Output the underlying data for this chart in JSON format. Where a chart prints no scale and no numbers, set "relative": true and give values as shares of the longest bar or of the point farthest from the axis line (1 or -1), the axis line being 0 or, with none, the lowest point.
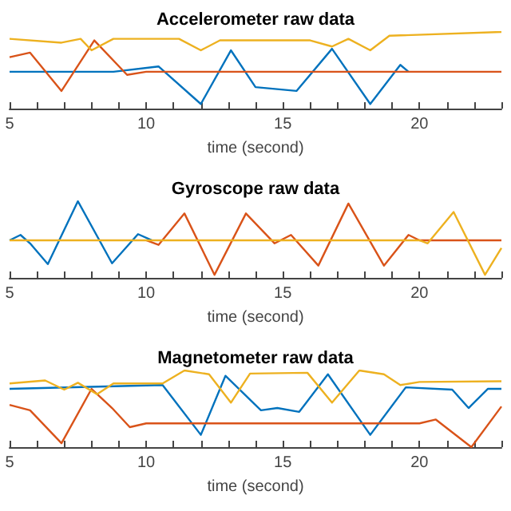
{
  "chart_data": [
    {
      "type": "line",
      "title": "Accelerometer raw data",
      "xlabel": "time (second)",
      "relative": true,
      "marker": "none",
      "xlim": [
        5,
        23
      ],
      "xticks": [
        5,
        {
          "value": 6,
          "label": null
        },
        {
          "value": 7,
          "label": null
        },
        {
          "value": 8,
          "label": null
        },
        {
          "value": 9,
          "label": null
        },
        10,
        {
          "value": 11,
          "label": null
        },
        {
          "value": 12,
          "label": null
        },
        {
          "value": 13,
          "label": null
        },
        {
          "value": 14,
          "label": null
        },
        15,
        {
          "value": 16,
          "label": null
        },
        {
          "value": 17,
          "label": null
        },
        {
          "value": 18,
          "label": null
        },
        {
          "value": 19,
          "label": null
        },
        20,
        {
          "value": 21,
          "label": null
        },
        {
          "value": 22,
          "label": null
        },
        {
          "value": 23,
          "label": null
        }
      ],
      "series": [
        {
          "color": "#0072bd",
          "x": [
            5,
            8.8,
            10.45,
            12,
            13.1,
            14,
            15.5,
            16.8,
            18.2,
            19.3,
            19.6
          ],
          "values": [
            0.48,
            0.48,
            0.55,
            0.06,
            0.76,
            0.28,
            0.23,
            0.78,
            0.06,
            0.57,
            0.48
          ]
        },
        {
          "color": "#d95319",
          "x": [
            5,
            5.75,
            6.9,
            8.1,
            9.3,
            10,
            23
          ],
          "values": [
            0.67,
            0.73,
            0.23,
            0.89,
            0.44,
            0.48,
            0.48
          ]
        },
        {
          "color": "#edb120",
          "x": [
            5,
            6.9,
            7.6,
            8,
            8.8,
            11.2,
            12,
            12.7,
            16,
            16.8,
            17.4,
            18.2,
            18.9,
            23
          ],
          "values": [
            0.91,
            0.86,
            0.91,
            0.76,
            0.91,
            0.91,
            0.76,
            0.89,
            0.89,
            0.81,
            0.91,
            0.76,
            0.95,
            1.0
          ]
        }
      ]
    },
    {
      "type": "line",
      "title": "Gyroscope raw data",
      "xlabel": "time (second)",
      "relative": true,
      "marker": "none",
      "xlim": [
        5,
        23
      ],
      "xticks": [
        5,
        {
          "value": 6,
          "label": null
        },
        {
          "value": 7,
          "label": null
        },
        {
          "value": 8,
          "label": null
        },
        {
          "value": 9,
          "label": null
        },
        10,
        {
          "value": 11,
          "label": null
        },
        {
          "value": 12,
          "label": null
        },
        {
          "value": 13,
          "label": null
        },
        {
          "value": 14,
          "label": null
        },
        15,
        {
          "value": 16,
          "label": null
        },
        {
          "value": 17,
          "label": null
        },
        {
          "value": 18,
          "label": null
        },
        {
          "value": 19,
          "label": null
        },
        20,
        {
          "value": 21,
          "label": null
        },
        {
          "value": 22,
          "label": null
        },
        {
          "value": 23,
          "label": null
        }
      ],
      "series": [
        {
          "color": "#0072bd",
          "x": [
            5,
            5.4,
            5.75,
            6.4,
            7.5,
            8.75,
            9.7,
            10.2
          ],
          "values": [
            0.49,
            0.56,
            0.45,
            0.18,
            1.0,
            0.19,
            0.57,
            0.49
          ]
        },
        {
          "color": "#d95319",
          "x": [
            10,
            10.45,
            11.4,
            12.5,
            13.65,
            14.7,
            15.3,
            16.3,
            17.4,
            18.7,
            19.6,
            20,
            23
          ],
          "values": [
            0.49,
            0.43,
            0.84,
            0.04,
            0.84,
            0.45,
            0.56,
            0.16,
            0.97,
            0.16,
            0.56,
            0.49,
            0.49
          ]
        },
        {
          "color": "#edb120",
          "x": [
            5,
            20,
            20.3,
            21.25,
            22.4,
            23
          ],
          "values": [
            0.49,
            0.49,
            0.45,
            0.86,
            0.04,
            0.39
          ]
        }
      ]
    },
    {
      "type": "line",
      "title": "Magnetometer raw data",
      "xlabel": "time (second)",
      "relative": true,
      "marker": "none",
      "xlim": [
        5,
        23
      ],
      "xticks": [
        5,
        {
          "value": 6,
          "label": null
        },
        {
          "value": 7,
          "label": null
        },
        {
          "value": 8,
          "label": null
        },
        {
          "value": 9,
          "label": null
        },
        10,
        {
          "value": 11,
          "label": null
        },
        {
          "value": 12,
          "label": null
        },
        {
          "value": 13,
          "label": null
        },
        {
          "value": 14,
          "label": null
        },
        15,
        {
          "value": 16,
          "label": null
        },
        {
          "value": 17,
          "label": null
        },
        {
          "value": 18,
          "label": null
        },
        {
          "value": 19,
          "label": null
        },
        20,
        {
          "value": 21,
          "label": null
        },
        {
          "value": 22,
          "label": null
        },
        {
          "value": 23,
          "label": null
        }
      ],
      "series": [
        {
          "color": "#0072bd",
          "x": [
            5,
            10.6,
            12,
            12.9,
            14.2,
            14.8,
            15.6,
            16.65,
            18.2,
            19.5,
            21.2,
            21.8,
            22.5,
            23
          ],
          "values": [
            0.76,
            0.81,
            0.16,
            0.93,
            0.48,
            0.51,
            0.46,
            0.95,
            0.16,
            0.78,
            0.75,
            0.51,
            0.76,
            0.76
          ]
        },
        {
          "color": "#d95319",
          "x": [
            5,
            5.75,
            6.9,
            8,
            8.75,
            9.4,
            10,
            20,
            20.6,
            21.9,
            23
          ],
          "values": [
            0.55,
            0.48,
            0.05,
            0.76,
            0.51,
            0.26,
            0.31,
            0.31,
            0.36,
            0.0,
            0.53
          ]
        },
        {
          "color": "#edb120",
          "x": [
            5,
            6.3,
            7,
            7.5,
            8.2,
            8.8,
            10.6,
            11.4,
            12.3,
            13.1,
            13.8,
            15.9,
            16.8,
            17.8,
            18.7,
            19.3,
            20,
            23
          ],
          "values": [
            0.83,
            0.87,
            0.75,
            0.84,
            0.69,
            0.83,
            0.83,
            1.0,
            0.95,
            0.58,
            0.96,
            0.97,
            0.58,
            1.0,
            0.95,
            0.81,
            0.85,
            0.86
          ]
        }
      ]
    }
  ]
}
